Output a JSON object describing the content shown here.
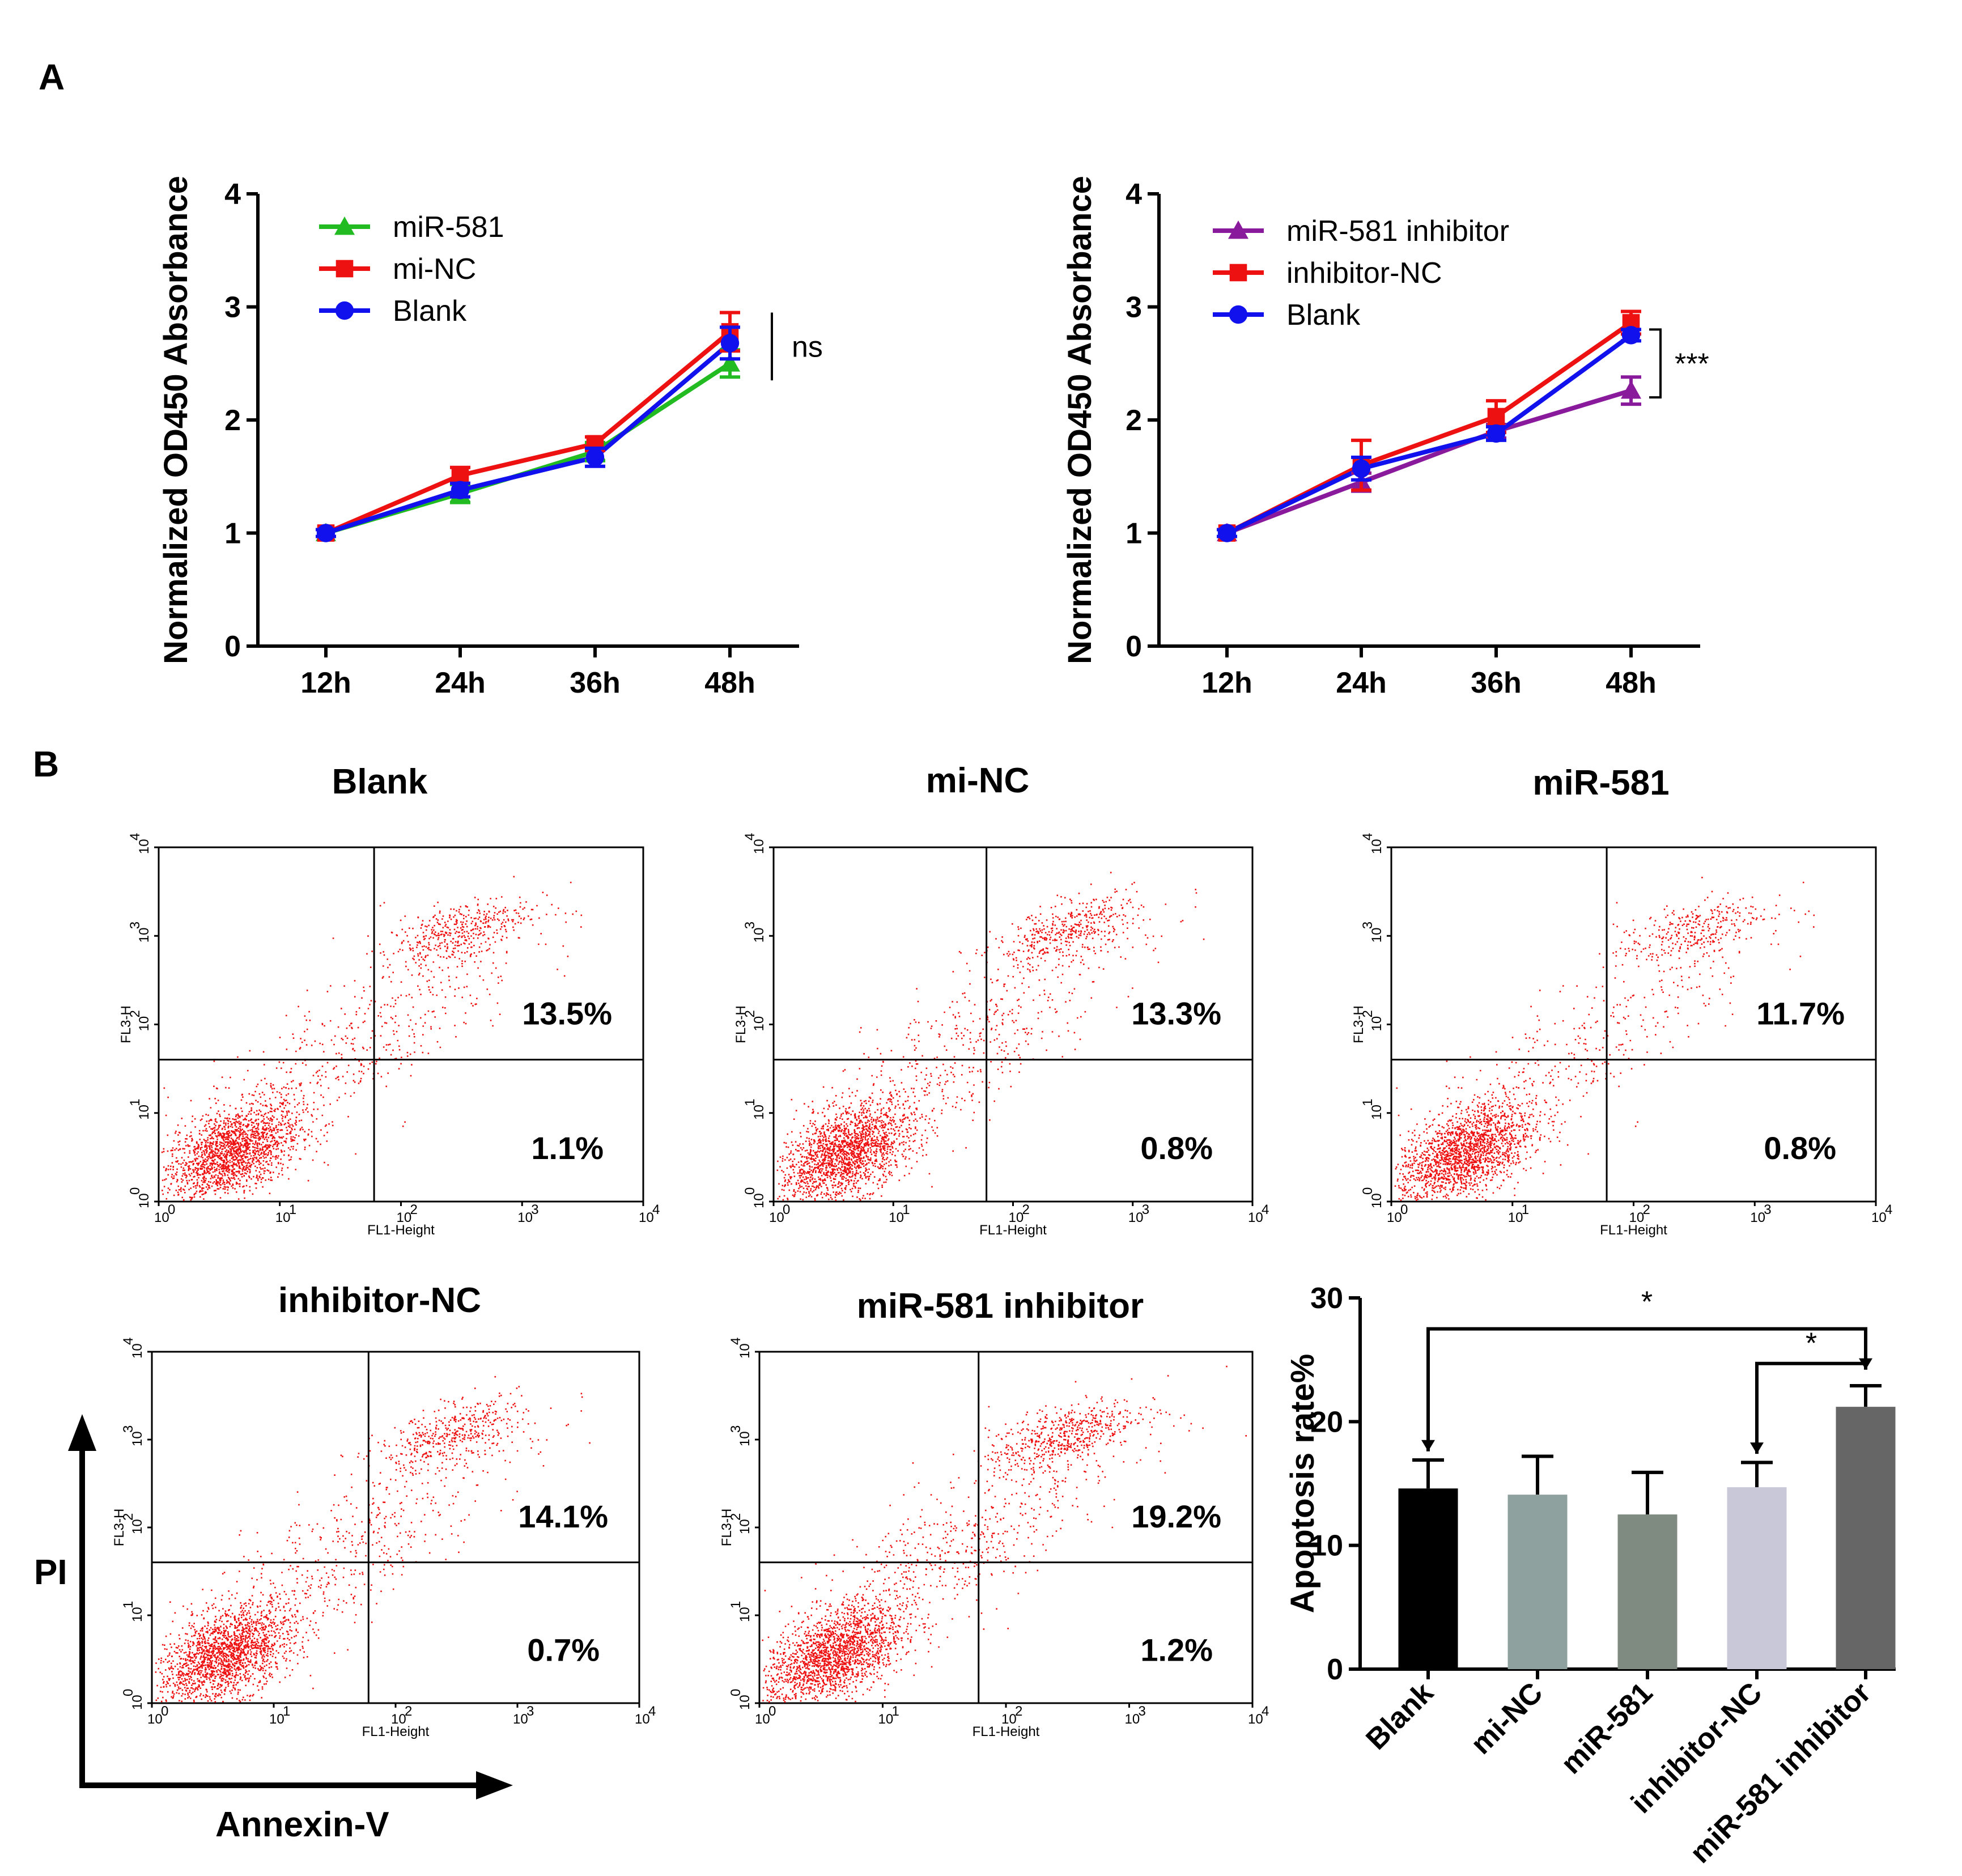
{
  "panel_labels": {
    "a": "A",
    "b": "B"
  },
  "colors": {
    "green": "#22bb22",
    "red": "#ee1111",
    "blue": "#1111ee",
    "purple": "#8a1a9c",
    "dots": "#ee1111"
  },
  "chart_data": [
    {
      "id": "line-left",
      "type": "line",
      "title": "",
      "xlabel": "",
      "ylabel": "Normalized OD450 Absorbance",
      "categories": [
        "12h",
        "24h",
        "36h",
        "48h"
      ],
      "ylim": [
        0,
        4
      ],
      "yticks": [
        "0",
        "1",
        "2",
        "3",
        "4"
      ],
      "series": [
        {
          "name": "miR-581",
          "color": "#22bb22",
          "marker": "triangle",
          "values": [
            1.0,
            1.35,
            1.72,
            2.5
          ],
          "errors": [
            0.03,
            0.08,
            0.08,
            0.12
          ]
        },
        {
          "name": "mi-NC",
          "color": "#ee1111",
          "marker": "square",
          "values": [
            1.0,
            1.51,
            1.79,
            2.78
          ],
          "errors": [
            0.03,
            0.07,
            0.06,
            0.17
          ]
        },
        {
          "name": "Blank",
          "color": "#1111ee",
          "marker": "circle",
          "values": [
            1.0,
            1.38,
            1.67,
            2.68
          ],
          "errors": [
            0.03,
            0.06,
            0.08,
            0.14
          ]
        }
      ],
      "annotation": "ns"
    },
    {
      "id": "line-right",
      "type": "line",
      "title": "",
      "xlabel": "",
      "ylabel": "Normalized OD450 Absorbance",
      "categories": [
        "12h",
        "24h",
        "36h",
        "48h"
      ],
      "ylim": [
        0,
        4
      ],
      "yticks": [
        "0",
        "1",
        "2",
        "3",
        "4"
      ],
      "series": [
        {
          "name": "miR-581 inhibitor",
          "color": "#8a1a9c",
          "marker": "triangle",
          "values": [
            1.0,
            1.45,
            1.9,
            2.26
          ],
          "errors": [
            0.03,
            0.08,
            0.06,
            0.12
          ]
        },
        {
          "name": "inhibitor-NC",
          "color": "#ee1111",
          "marker": "square",
          "values": [
            1.0,
            1.6,
            2.03,
            2.86
          ],
          "errors": [
            0.03,
            0.22,
            0.14,
            0.1
          ]
        },
        {
          "name": "Blank",
          "color": "#1111ee",
          "marker": "circle",
          "values": [
            1.0,
            1.57,
            1.88,
            2.75
          ],
          "errors": [
            0.03,
            0.1,
            0.06,
            0.05
          ]
        }
      ],
      "annotation": "***"
    },
    {
      "id": "apoptosis-bar",
      "type": "bar",
      "title": "",
      "xlabel": "",
      "ylabel": "Apoptosis rate%",
      "categories": [
        "Blank",
        "mi-NC",
        "miR-581",
        "inhibitor-NC",
        "miR-581 inhibitor"
      ],
      "values": [
        14.6,
        14.1,
        12.5,
        14.7,
        21.2
      ],
      "errors": [
        2.3,
        3.1,
        3.4,
        2.0,
        1.7
      ],
      "colors": [
        "#000000",
        "#8fa19e",
        "#7f8a80",
        "#c8c8d9",
        "#666666"
      ],
      "ylim": [
        0,
        30
      ],
      "yticks": [
        "0",
        "10",
        "20",
        "30"
      ],
      "significance": [
        "*",
        "*"
      ]
    },
    {
      "id": "facs",
      "type": "scatter",
      "xlabel": "FL1-Height",
      "ylabel": "FL3-H",
      "xlim": [
        1,
        10000
      ],
      "ylim": [
        1,
        10000
      ],
      "log_ticks": [
        "10",
        "10",
        "10",
        "10",
        "10"
      ],
      "log_exponents": [
        "0",
        "1",
        "2",
        "3",
        "4"
      ],
      "gate": {
        "x": 60,
        "y": 40
      },
      "outer_x_axis": "Annexin-V",
      "outer_y_axis": "PI",
      "plots": [
        {
          "title": "Blank",
          "upper_right": "13.5%",
          "lower_right": "1.1%"
        },
        {
          "title": "mi-NC",
          "upper_right": "13.3%",
          "lower_right": "0.8%"
        },
        {
          "title": "miR-581",
          "upper_right": "11.7%",
          "lower_right": "0.8%"
        },
        {
          "title": "inhibitor-NC",
          "upper_right": "14.1%",
          "lower_right": "0.7%"
        },
        {
          "title": "miR-581 inhibitor",
          "upper_right": "19.2%",
          "lower_right": "1.2%"
        }
      ]
    }
  ]
}
